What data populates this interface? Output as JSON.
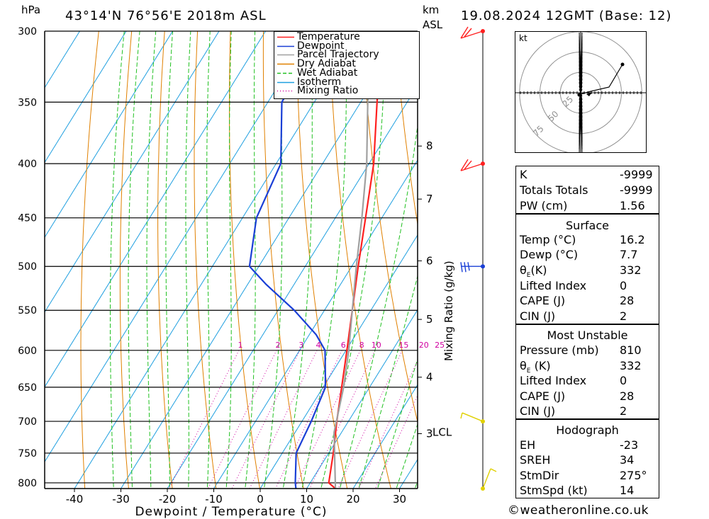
{
  "header": {
    "pressure_unit": "hPa",
    "location": "43°14'N  76°56'E  2018m  ASL",
    "km_label": "km",
    "asl_label": "ASL",
    "datetime": "19.08.2024  12GMT  (Base: 12)"
  },
  "legend": [
    {
      "label": "Temperature",
      "color": "#ff2020",
      "style": "solid"
    },
    {
      "label": "Dewpoint",
      "color": "#1a3fd6",
      "style": "solid"
    },
    {
      "label": "Parcel Trajectory",
      "color": "#a0a0a0",
      "style": "solid"
    },
    {
      "label": "Dry Adiabat",
      "color": "#e08000",
      "style": "solid"
    },
    {
      "label": "Wet Adiabat",
      "color": "#20c020",
      "style": "dashed"
    },
    {
      "label": "Isotherm",
      "color": "#1f9fe0",
      "style": "solid"
    },
    {
      "label": "Mixing Ratio",
      "color": "#d000a0",
      "style": "dotted"
    }
  ],
  "chart_data": {
    "type": "line",
    "xlabel": "Dewpoint / Temperature (°C)",
    "ylabel": "hPa",
    "x_ticks": [
      -40,
      -30,
      -20,
      -10,
      0,
      10,
      20,
      30
    ],
    "pressure_levels": [
      300,
      350,
      400,
      450,
      500,
      550,
      600,
      650,
      700,
      750,
      800
    ],
    "ylim": [
      300,
      810
    ],
    "km_ticks": [
      {
        "km": "8",
        "p": 385
      },
      {
        "km": "7",
        "p": 432
      },
      {
        "km": "6",
        "p": 494
      },
      {
        "km": "5",
        "p": 561
      },
      {
        "km": "4",
        "p": 636
      },
      {
        "km": "3",
        "p": 719
      }
    ],
    "lcl": {
      "label": "LCL",
      "p": 717
    },
    "mixing_ratio_label": "Mixing Ratio (g/kg)",
    "mixing_ratio_values": [
      "1",
      "2",
      "3",
      "4",
      "6",
      "8",
      "10",
      "15",
      "20",
      "25"
    ],
    "series": [
      {
        "name": "Temperature",
        "color": "#ff2020",
        "points": [
          [
            810,
            16.2
          ],
          [
            800,
            14.0
          ],
          [
            750,
            11.0
          ],
          [
            700,
            7.5
          ],
          [
            650,
            4.0
          ],
          [
            600,
            0.2
          ],
          [
            550,
            -4.0
          ],
          [
            500,
            -8.6
          ],
          [
            450,
            -13.5
          ],
          [
            400,
            -19.0
          ],
          [
            350,
            -26.5
          ],
          [
            300,
            -35.0
          ]
        ]
      },
      {
        "name": "Dewpoint",
        "color": "#1a3fd6",
        "points": [
          [
            810,
            7.7
          ],
          [
            800,
            6.8
          ],
          [
            750,
            3.0
          ],
          [
            700,
            2.0
          ],
          [
            650,
            0.5
          ],
          [
            600,
            -4.5
          ],
          [
            580,
            -8.5
          ],
          [
            550,
            -16.5
          ],
          [
            520,
            -26.0
          ],
          [
            500,
            -32.0
          ],
          [
            450,
            -37.0
          ],
          [
            400,
            -39.0
          ],
          [
            350,
            -47.0
          ],
          [
            300,
            -48.0
          ]
        ]
      },
      {
        "name": "Parcel Trajectory",
        "color": "#a0a0a0",
        "points": [
          [
            810,
            16.2
          ],
          [
            717,
            8.4
          ],
          [
            650,
            4.4
          ],
          [
            600,
            0.6
          ],
          [
            550,
            -4.0
          ],
          [
            500,
            -9.0
          ],
          [
            450,
            -14.3
          ],
          [
            400,
            -20.5
          ],
          [
            350,
            -28.5
          ],
          [
            300,
            -37.5
          ]
        ]
      }
    ]
  },
  "wind_barbs": [
    {
      "p": 300,
      "color": "#ff2020"
    },
    {
      "p": 400,
      "color": "#ff2020"
    },
    {
      "p": 500,
      "color": "#1a3fd6"
    },
    {
      "p": 700,
      "color": "#e0d000"
    },
    {
      "p": 810,
      "color": "#e0d000"
    }
  ],
  "hodograph": {
    "unit": "kt",
    "rings": [
      "25",
      "50",
      "75"
    ]
  },
  "indices": {
    "k_label": "K",
    "k_value": "-9999",
    "tt_label": "Totals Totals",
    "tt_value": "-9999",
    "pw_label": "PW (cm)",
    "pw_value": "1.56"
  },
  "surface": {
    "title": "Surface",
    "temp_label": "Temp (°C)",
    "temp_value": "16.2",
    "dewp_label": "Dewp (°C)",
    "dewp_value": "7.7",
    "theta_label": "(K)",
    "theta_value": "332",
    "li_label": "Lifted Index",
    "li_value": "0",
    "cape_label": "CAPE (J)",
    "cape_value": "28",
    "cin_label": "CIN (J)",
    "cin_value": "2"
  },
  "most_unstable": {
    "title": "Most Unstable",
    "pressure_label": "Pressure (mb)",
    "pressure_value": "810",
    "theta_label": "(K)",
    "theta_value": "332",
    "li_label": "Lifted Index",
    "li_value": "0",
    "cape_label": "CAPE (J)",
    "cape_value": "28",
    "cin_label": "CIN (J)",
    "cin_value": "2"
  },
  "hodograph_table": {
    "title": "Hodograph",
    "eh_label": "EH",
    "eh_value": "-23",
    "sreh_label": "SREH",
    "sreh_value": "34",
    "stmdir_label": "StmDir",
    "stmdir_value": "275°",
    "stmspd_label": "StmSpd (kt)",
    "stmspd_value": "14"
  },
  "footer": {
    "copyright": "©weatheronline.co.uk"
  }
}
